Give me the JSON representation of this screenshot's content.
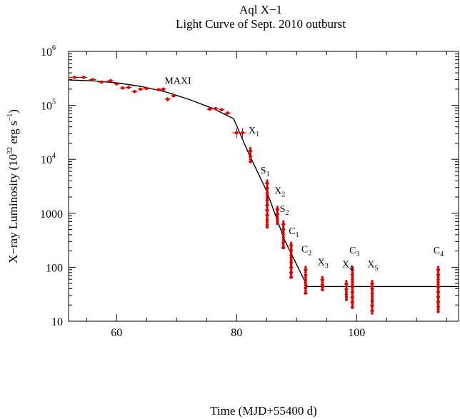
{
  "chart_data": {
    "type": "scatter",
    "title": "Aql X−1",
    "subtitle": "Light Curve of Sept. 2010 outburst",
    "xlabel": "Time (MJD+55400 d)",
    "ylabel_parts": {
      "prefix": "X−ray Luminosity (10",
      "exp1": "32",
      "mid": " erg s",
      "exp2": "−1",
      "suffix": ")"
    },
    "xlim": [
      52,
      117
    ],
    "ylim": [
      10,
      1000000
    ],
    "yscale": "log",
    "x_ticks": [
      {
        "value": 60,
        "label": "60"
      },
      {
        "value": 80,
        "label": "80"
      },
      {
        "value": 100,
        "label": "100"
      }
    ],
    "y_ticks": [
      {
        "value": 10,
        "label": "10",
        "exp": ""
      },
      {
        "value": 100,
        "label": "100",
        "exp": ""
      },
      {
        "value": 1000,
        "label": "1000",
        "exp": ""
      },
      {
        "value": 10000,
        "label": "10",
        "exp": "4"
      },
      {
        "value": 100000,
        "label": "10",
        "exp": "5"
      },
      {
        "value": 1000000,
        "label": "10",
        "exp": "6"
      }
    ],
    "grid": false,
    "series": [
      {
        "name": "",
        "kind": "points",
        "color": "#dd0000",
        "points": [
          {
            "x": 53,
            "y": 330000,
            "xerr": 1.0,
            "ylo": 315000,
            "yhi": 345000
          },
          {
            "x": 54.5,
            "y": 330000,
            "xerr": 0.6,
            "ylo": 315000,
            "yhi": 345000
          },
          {
            "x": 56,
            "y": 300000,
            "xerr": 0.6,
            "ylo": 285000,
            "yhi": 315000
          },
          {
            "x": 57.5,
            "y": 270000,
            "xerr": 0.6,
            "ylo": 255000,
            "yhi": 285000
          },
          {
            "x": 59,
            "y": 285000,
            "xerr": 0.6,
            "ylo": 270000,
            "yhi": 300000
          },
          {
            "x": 60,
            "y": 250000,
            "xerr": 0.5,
            "ylo": 235000,
            "yhi": 265000
          },
          {
            "x": 61,
            "y": 210000,
            "xerr": 0.5,
            "ylo": 198000,
            "yhi": 222000
          },
          {
            "x": 62,
            "y": 215000,
            "xerr": 0.5,
            "ylo": 203000,
            "yhi": 227000
          },
          {
            "x": 63,
            "y": 180000,
            "xerr": 0.5,
            "ylo": 170000,
            "yhi": 190000
          },
          {
            "x": 64,
            "y": 200000,
            "xerr": 0.5,
            "ylo": 189000,
            "yhi": 211000
          },
          {
            "x": 65,
            "y": 205000,
            "xerr": 0.5,
            "ylo": 194000,
            "yhi": 216000
          },
          {
            "x": 67,
            "y": 195000,
            "xerr": 0.5,
            "ylo": 184000,
            "yhi": 206000
          },
          {
            "x": 67.8,
            "y": 200000,
            "xerr": 0.5,
            "ylo": 189000,
            "yhi": 211000
          },
          {
            "x": 68.5,
            "y": 130000,
            "xerr": 0.5,
            "ylo": 118000,
            "yhi": 142000
          },
          {
            "x": 69.5,
            "y": 150000,
            "xerr": 0.5,
            "ylo": 142000,
            "yhi": 158000
          },
          {
            "x": 75.5,
            "y": 85000,
            "xerr": 0.5,
            "ylo": 80000,
            "yhi": 90000
          },
          {
            "x": 76.5,
            "y": 87000,
            "xerr": 0.5,
            "ylo": 82000,
            "yhi": 92000
          },
          {
            "x": 77.5,
            "y": 83000,
            "xerr": 0.5,
            "ylo": 78000,
            "yhi": 88000
          },
          {
            "x": 78.5,
            "y": 72000,
            "xerr": 0.5,
            "ylo": 67000,
            "yhi": 77000
          },
          {
            "x": 80,
            "y": 31000,
            "xerr": 0.7,
            "ylo": 25000,
            "yhi": 38000
          },
          {
            "x": 81,
            "y": 31000,
            "xerr": 0.5,
            "ylo": 25000,
            "yhi": 38000
          }
        ]
      },
      {
        "name": "",
        "kind": "clusters",
        "color": "#dd0000",
        "clusters": [
          {
            "x": 82.3,
            "ylo": 9000,
            "yhi": 16000
          },
          {
            "x": 85.1,
            "ylo": 550,
            "yhi": 4000
          },
          {
            "x": 86.8,
            "ylo": 650,
            "yhi": 1300
          },
          {
            "x": 87.8,
            "ylo": 230,
            "yhi": 700
          },
          {
            "x": 89.1,
            "ylo": 65,
            "yhi": 280
          },
          {
            "x": 91.5,
            "ylo": 33,
            "yhi": 100
          },
          {
            "x": 94.3,
            "ylo": 38,
            "yhi": 65
          },
          {
            "x": 98.3,
            "ylo": 25,
            "yhi": 55
          },
          {
            "x": 99.3,
            "ylo": 18,
            "yhi": 100
          },
          {
            "x": 102.6,
            "ylo": 14,
            "yhi": 55
          },
          {
            "x": 113.6,
            "ylo": 15,
            "yhi": 100
          }
        ]
      },
      {
        "name": "",
        "kind": "model",
        "color": "#000000",
        "points": [
          {
            "x": 52,
            "y": 295000
          },
          {
            "x": 56,
            "y": 285000
          },
          {
            "x": 60,
            "y": 262000
          },
          {
            "x": 64,
            "y": 225000
          },
          {
            "x": 68,
            "y": 180000
          },
          {
            "x": 72,
            "y": 130000
          },
          {
            "x": 76,
            "y": 88000
          },
          {
            "x": 79.5,
            "y": 57000
          },
          {
            "x": 82,
            "y": 13000
          },
          {
            "x": 85,
            "y": 2600
          },
          {
            "x": 88,
            "y": 320
          },
          {
            "x": 91.8,
            "y": 44
          },
          {
            "x": 117,
            "y": 44
          }
        ]
      }
    ],
    "annotations": [
      {
        "text": "MAXI",
        "sub": "",
        "x": 68,
        "y": 250000
      },
      {
        "text": "X",
        "sub": "1",
        "x": 82,
        "y": 30000
      },
      {
        "text": "S",
        "sub": "1",
        "x": 84,
        "y": 5500
      },
      {
        "text": "X",
        "sub": "2",
        "x": 86.3,
        "y": 2300
      },
      {
        "text": "S",
        "sub": "2",
        "x": 87.2,
        "y": 1050
      },
      {
        "text": "C",
        "sub": "1",
        "x": 88.7,
        "y": 410
      },
      {
        "text": "C",
        "sub": "2",
        "x": 90.8,
        "y": 190
      },
      {
        "text": "X",
        "sub": "3",
        "x": 93.5,
        "y": 110
      },
      {
        "text": "C",
        "sub": "3",
        "x": 98.8,
        "y": 180
      },
      {
        "text": "X",
        "sub": "4",
        "x": 97.6,
        "y": 100
      },
      {
        "text": "X",
        "sub": "5",
        "x": 101.8,
        "y": 100
      },
      {
        "text": "C",
        "sub": "4",
        "x": 112.8,
        "y": 180
      }
    ]
  }
}
